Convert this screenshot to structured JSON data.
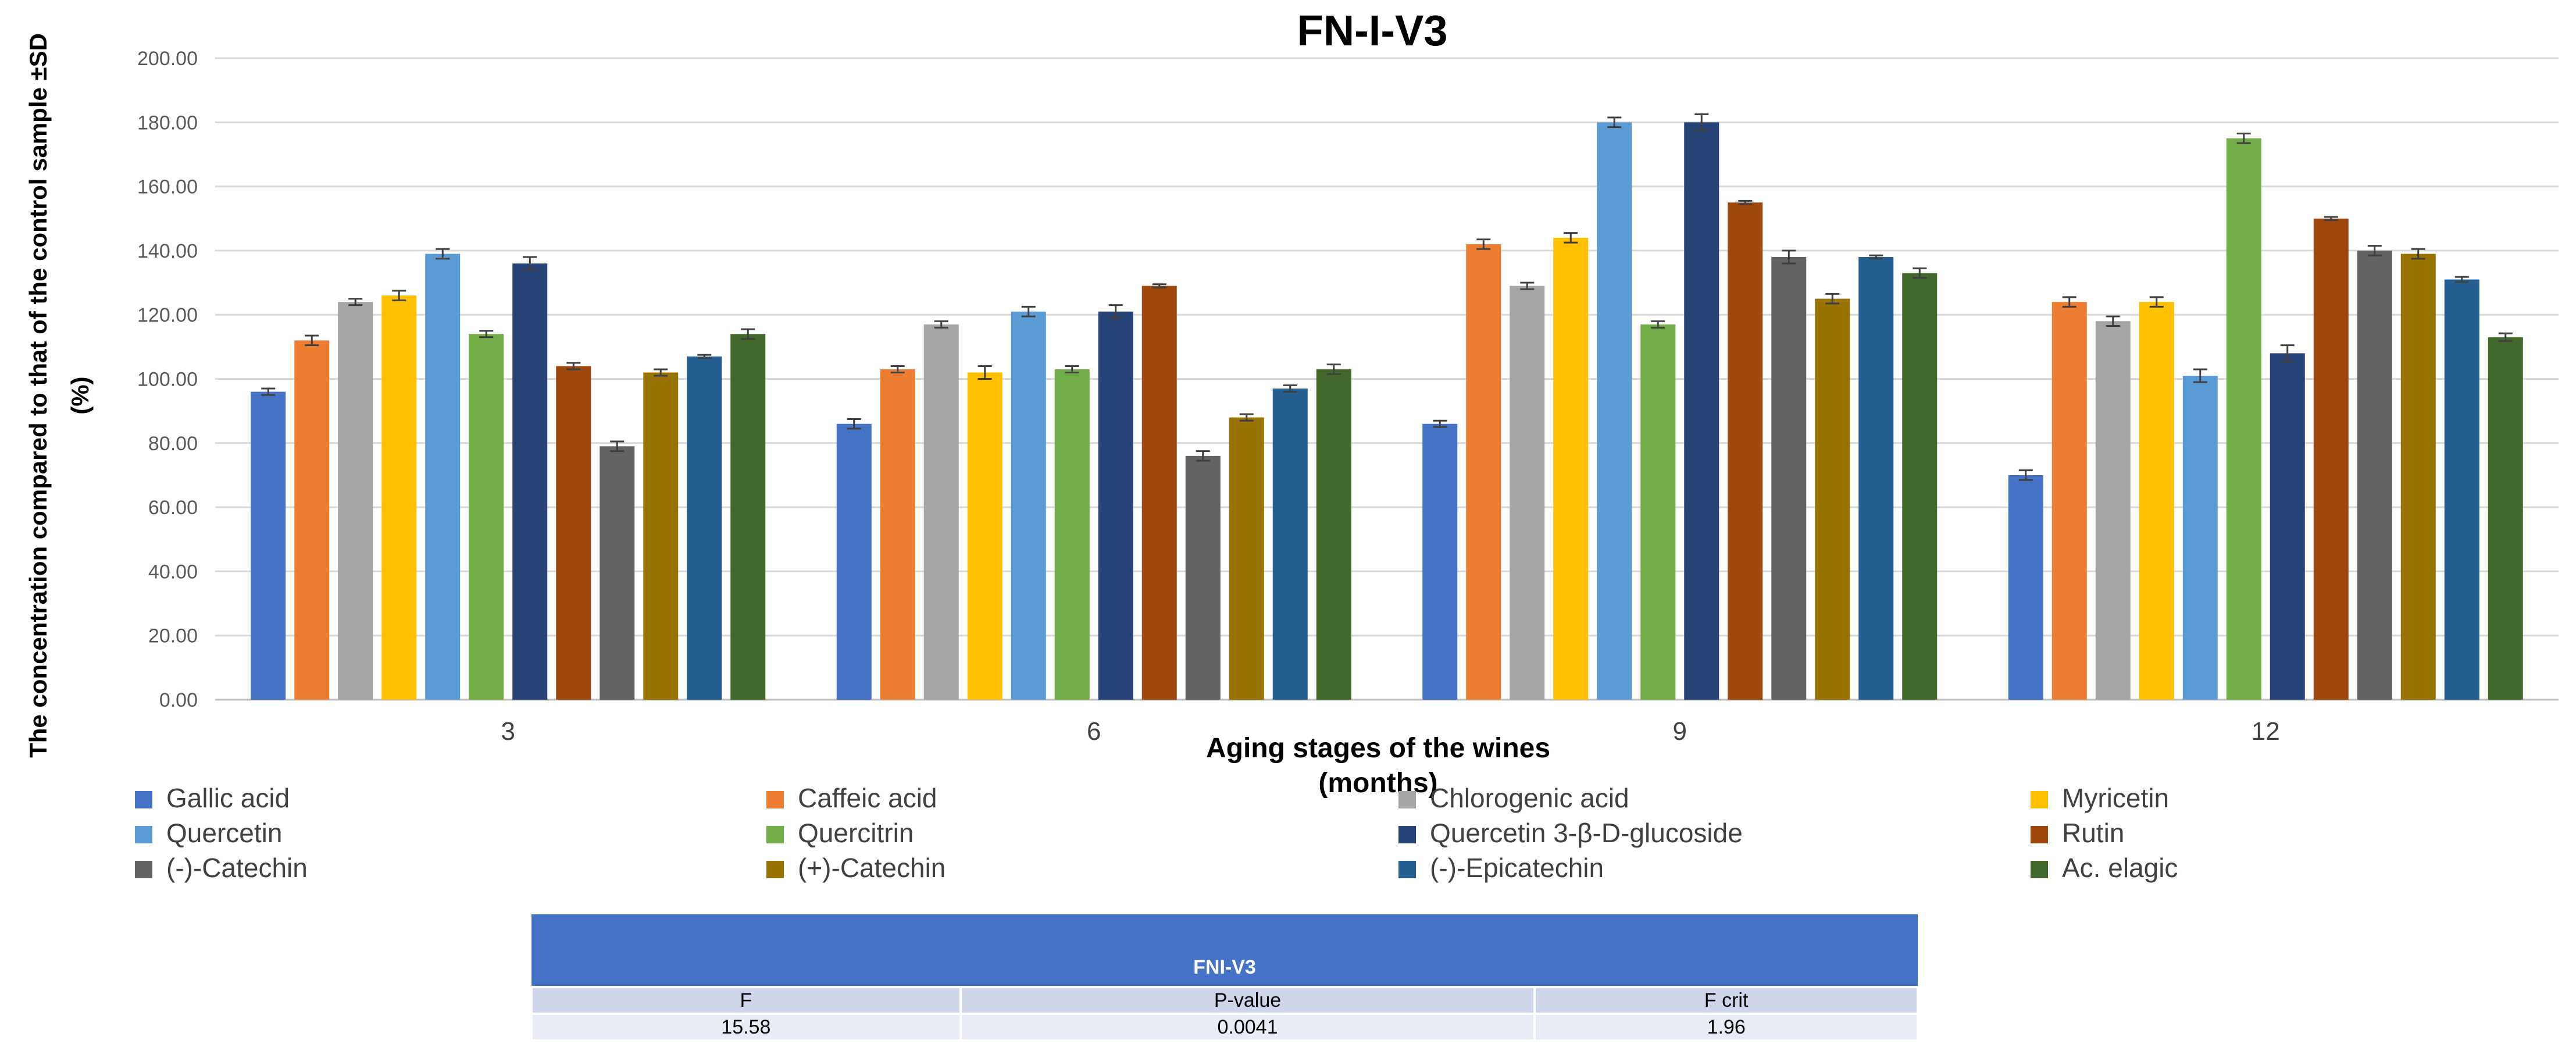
{
  "chart_data": {
    "type": "bar",
    "title": "FN-I-V3",
    "xlabel": "Aging stages of the wines (months)",
    "xlabel_lines": [
      "Aging stages of the wines",
      "(months)"
    ],
    "ylabel": "The concentration compared to that of the control sample ±SD (%)",
    "ylabel_lines": [
      "The concentration compared to that of the control sample ±SD",
      "(%)"
    ],
    "ylim": [
      0,
      200
    ],
    "yticks": [
      0,
      20,
      40,
      60,
      80,
      100,
      120,
      140,
      160,
      180,
      200
    ],
    "ytick_labels": [
      "0.00",
      "20.00",
      "40.00",
      "60.00",
      "80.00",
      "100.00",
      "120.00",
      "140.00",
      "160.00",
      "180.00",
      "200.00"
    ],
    "grid": true,
    "legend_position": "bottom",
    "categories": [
      "3",
      "6",
      "9",
      "12"
    ],
    "series": [
      {
        "name": "Gallic acid",
        "color": "#4472c4",
        "values": [
          96,
          86,
          86,
          70
        ],
        "errors": [
          1,
          1.5,
          1,
          1.5
        ]
      },
      {
        "name": "Caffeic acid",
        "color": "#ed7d31",
        "values": [
          112,
          103,
          142,
          124
        ],
        "errors": [
          1.5,
          1,
          1.5,
          1.5
        ]
      },
      {
        "name": "Chlorogenic acid",
        "color": "#a5a5a5",
        "values": [
          124,
          117,
          129,
          118
        ],
        "errors": [
          1,
          1,
          1,
          1.5
        ]
      },
      {
        "name": "Myricetin",
        "color": "#ffc000",
        "values": [
          126,
          102,
          144,
          124
        ],
        "errors": [
          1.5,
          2,
          1.5,
          1.5
        ]
      },
      {
        "name": "Quercetin",
        "color": "#5b9bd5",
        "values": [
          139,
          121,
          180,
          101
        ],
        "errors": [
          1.5,
          1.5,
          1.5,
          2
        ]
      },
      {
        "name": "Quercitrin",
        "color": "#70ad47",
        "values": [
          114,
          103,
          117,
          175
        ],
        "errors": [
          1,
          1,
          1,
          1.5
        ]
      },
      {
        "name": "Quercetin 3-β-D-glucoside",
        "color": "#264478",
        "values": [
          136,
          121,
          180,
          108
        ],
        "errors": [
          2,
          2,
          2.5,
          2.5
        ]
      },
      {
        "name": "Rutin",
        "color": "#9e480e",
        "values": [
          104,
          129,
          155,
          150
        ],
        "errors": [
          1,
          0.5,
          0.5,
          0.5
        ]
      },
      {
        "name": "(-)-Catechin",
        "color": "#636363",
        "values": [
          79,
          76,
          138,
          140
        ],
        "errors": [
          1.5,
          1.5,
          2,
          1.5
        ]
      },
      {
        "name": "(+)-Catechin",
        "color": "#997300",
        "values": [
          102,
          88,
          125,
          139
        ],
        "errors": [
          1,
          1,
          1.5,
          1.5
        ]
      },
      {
        "name": "(-)-Epicatechin",
        "color": "#255e91",
        "values": [
          107,
          97,
          138,
          131
        ],
        "errors": [
          0.5,
          1,
          0.5,
          0.8
        ]
      },
      {
        "name": "Ac. elagic",
        "color": "#43682b",
        "values": [
          114,
          103,
          133,
          113
        ],
        "errors": [
          1.5,
          1.5,
          1.5,
          1.2
        ]
      }
    ]
  },
  "stats_table": {
    "title": "FNI-V3",
    "headers": [
      "F",
      "P-value",
      "F crit"
    ],
    "values": [
      "15.58",
      "0.0041",
      "1.96"
    ]
  }
}
